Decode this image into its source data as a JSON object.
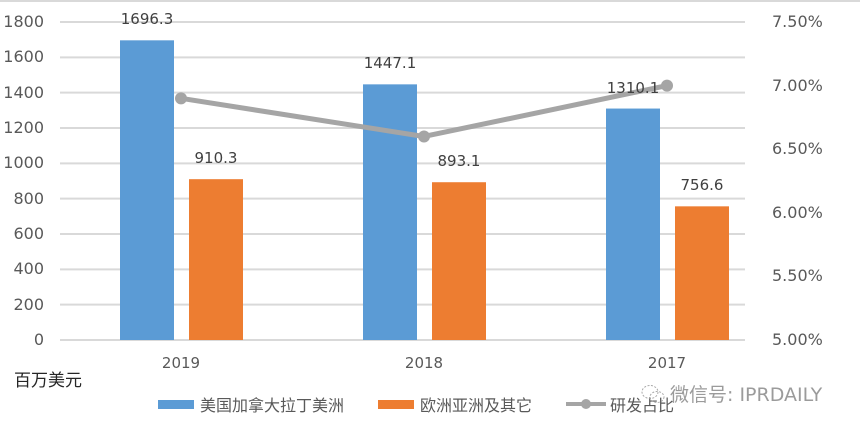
{
  "chart_data": {
    "type": "bar",
    "title": "",
    "xlabel": "",
    "ylabel": "百万美元",
    "ylim": [
      0,
      1800
    ],
    "y_ticks": [
      "0",
      "200",
      "400",
      "600",
      "800",
      "1000",
      "1200",
      "1400",
      "1600",
      "1800"
    ],
    "y2lim": [
      0.05,
      0.075
    ],
    "y2_ticks": [
      "5.00%",
      "5.50%",
      "6.00%",
      "6.50%",
      "7.00%",
      "7.50%"
    ],
    "categories": [
      "2019",
      "2018",
      "2017"
    ],
    "series": [
      {
        "name": "美国加拿大拉丁美洲",
        "type": "bar",
        "color": "#5b9bd5",
        "axis": "left",
        "values": [
          1696.3,
          1447.1,
          1310.1
        ],
        "labels": [
          "1696.3",
          "1447.1",
          "1310.1"
        ]
      },
      {
        "name": "欧洲亚洲及其它",
        "type": "bar",
        "color": "#ed7d31",
        "axis": "left",
        "values": [
          910.3,
          893.1,
          756.6
        ],
        "labels": [
          "910.3",
          "893.1",
          "756.6"
        ]
      },
      {
        "name": "研发占比",
        "type": "line",
        "color": "#a5a5a5",
        "axis": "right",
        "values": [
          0.069,
          0.066,
          0.07
        ]
      }
    ],
    "grid": true,
    "legend_position": "bottom"
  },
  "unit_label": "百万美元",
  "legend": [
    {
      "label": "美国加拿大拉丁美洲",
      "color": "#5b9bd5",
      "kind": "bar"
    },
    {
      "label": "欧洲亚洲及其它",
      "color": "#ed7d31",
      "kind": "bar"
    },
    {
      "label": "研发占比",
      "color": "#a5a5a5",
      "kind": "line"
    }
  ],
  "watermark": "微信号: IPRDAILY"
}
